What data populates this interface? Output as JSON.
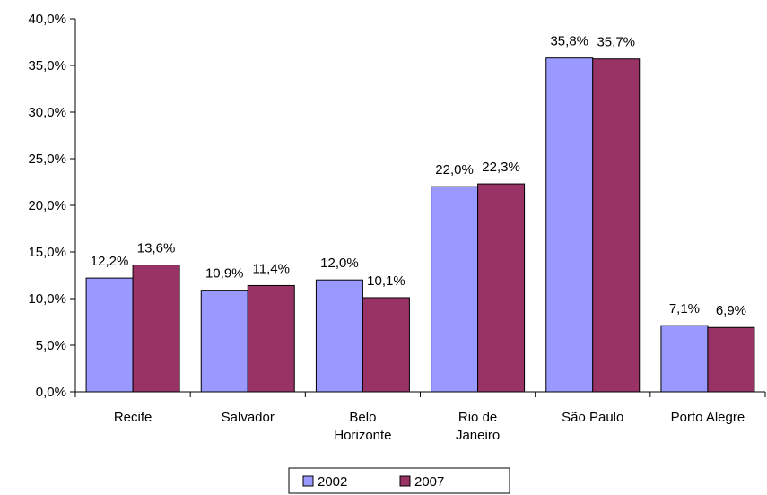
{
  "chart_data": {
    "type": "bar",
    "title": "",
    "xlabel": "",
    "ylabel": "",
    "categories": [
      [
        "Recife"
      ],
      [
        "Salvador"
      ],
      [
        "Belo",
        "Horizonte"
      ],
      [
        "Rio de",
        "Janeiro"
      ],
      [
        "São Paulo"
      ],
      [
        "Porto Alegre"
      ]
    ],
    "series": [
      {
        "name": "2002",
        "color": "#9999ff",
        "values": [
          12.2,
          10.9,
          12.0,
          22.0,
          35.8,
          7.1
        ],
        "labels": [
          "12,2%",
          "10,9%",
          "12,0%",
          "22,0%",
          "35,8%",
          "7,1%"
        ]
      },
      {
        "name": "2007",
        "color": "#993366",
        "values": [
          13.6,
          11.4,
          10.1,
          22.3,
          35.7,
          6.9
        ],
        "labels": [
          "13,6%",
          "11,4%",
          "10,1%",
          "22,3%",
          "35,7%",
          "6,9%"
        ]
      }
    ],
    "ylim": [
      0,
      40
    ],
    "yticks": [
      0,
      5,
      10,
      15,
      20,
      25,
      30,
      35,
      40
    ],
    "ytick_labels": [
      "0,0%",
      "5,0%",
      "10,0%",
      "15,0%",
      "20,0%",
      "25,0%",
      "30,0%",
      "35,0%",
      "40,0%"
    ],
    "grid": false,
    "legend_position": "bottom"
  }
}
